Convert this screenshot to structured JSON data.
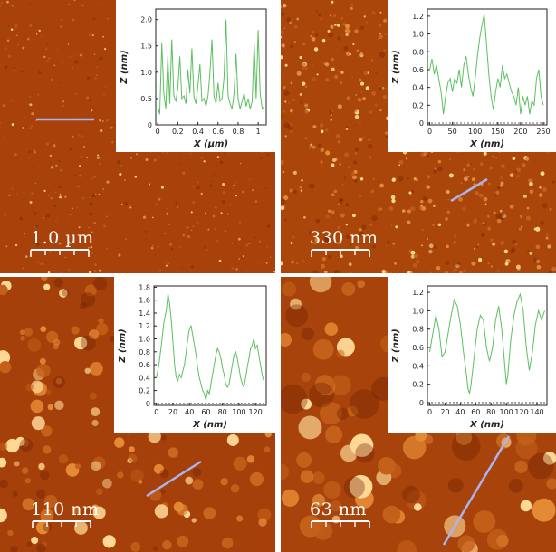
{
  "colors": {
    "afm_dark": "#7a2200",
    "afm_mid": "#b84a08",
    "afm_bright": "#ffd896",
    "profile_curve": "#5cc060",
    "profile_line_overlay": "#a9b4f0"
  },
  "panels": [
    {
      "id": "a",
      "scale_label": "1.0 µm",
      "inset": {
        "y_title": "Z (nm)",
        "x_title": "X (µm)",
        "y_ticks": [
          "0",
          "0.5",
          "1.0",
          "1.5",
          "2.0"
        ],
        "y_tick_values": [
          0,
          0.5,
          1.0,
          1.5,
          2.0
        ],
        "y_range": [
          0,
          2.2
        ],
        "x_ticks": [
          "0",
          "0.2",
          "0.4",
          "0.6",
          "0.8",
          "1"
        ],
        "x_tick_values": [
          0,
          0.2,
          0.4,
          0.6,
          0.8,
          1.0
        ],
        "x_range": [
          -0.02,
          1.08
        ],
        "profile": [
          [
            0,
            0.35
          ],
          [
            0.02,
            0.2
          ],
          [
            0.04,
            1.55
          ],
          [
            0.06,
            0.6
          ],
          [
            0.08,
            0.3
          ],
          [
            0.1,
            1.3
          ],
          [
            0.12,
            0.4
          ],
          [
            0.14,
            1.62
          ],
          [
            0.16,
            0.55
          ],
          [
            0.18,
            0.45
          ],
          [
            0.2,
            0.7
          ],
          [
            0.22,
            1.3
          ],
          [
            0.24,
            0.5
          ],
          [
            0.26,
            0.55
          ],
          [
            0.28,
            0.4
          ],
          [
            0.3,
            1.05
          ],
          [
            0.32,
            0.6
          ],
          [
            0.34,
            1.45
          ],
          [
            0.36,
            0.55
          ],
          [
            0.38,
            0.4
          ],
          [
            0.4,
            0.75
          ],
          [
            0.42,
            1.15
          ],
          [
            0.44,
            0.45
          ],
          [
            0.46,
            0.5
          ],
          [
            0.48,
            0.35
          ],
          [
            0.5,
            0.55
          ],
          [
            0.52,
            1.0
          ],
          [
            0.54,
            1.62
          ],
          [
            0.56,
            0.55
          ],
          [
            0.58,
            0.4
          ],
          [
            0.6,
            0.8
          ],
          [
            0.62,
            0.45
          ],
          [
            0.64,
            0.5
          ],
          [
            0.66,
            0.9
          ],
          [
            0.68,
            2.0
          ],
          [
            0.7,
            0.55
          ],
          [
            0.72,
            0.4
          ],
          [
            0.74,
            0.3
          ],
          [
            0.76,
            0.6
          ],
          [
            0.78,
            1.35
          ],
          [
            0.8,
            0.5
          ],
          [
            0.82,
            0.3
          ],
          [
            0.84,
            0.45
          ],
          [
            0.86,
            0.6
          ],
          [
            0.88,
            0.35
          ],
          [
            0.9,
            0.5
          ],
          [
            0.92,
            0.3
          ],
          [
            0.94,
            0.45
          ],
          [
            0.96,
            1.55
          ],
          [
            0.98,
            0.5
          ],
          [
            1.0,
            1.8
          ],
          [
            1.02,
            0.6
          ],
          [
            1.04,
            0.3
          ],
          [
            1.06,
            0.35
          ]
        ]
      }
    },
    {
      "id": "b",
      "scale_label": "330 nm",
      "inset": {
        "y_title": "Z (nm)",
        "x_title": "X (nm)",
        "y_ticks": [
          "0",
          "0.2",
          "0.4",
          "0.6",
          "0.8",
          "1.0",
          "1.2"
        ],
        "y_tick_values": [
          0,
          0.2,
          0.4,
          0.6,
          0.8,
          1.0,
          1.2
        ],
        "y_range": [
          -0.02,
          1.28
        ],
        "x_ticks": [
          "0",
          "50",
          "100",
          "150",
          "200",
          "250"
        ],
        "x_tick_values": [
          0,
          50,
          100,
          150,
          200,
          250
        ],
        "x_range": [
          -5,
          258
        ],
        "profile": [
          [
            0,
            0.6
          ],
          [
            5,
            0.72
          ],
          [
            10,
            0.55
          ],
          [
            15,
            0.65
          ],
          [
            20,
            0.5
          ],
          [
            25,
            0.35
          ],
          [
            30,
            0.1
          ],
          [
            35,
            0.3
          ],
          [
            40,
            0.45
          ],
          [
            45,
            0.5
          ],
          [
            50,
            0.35
          ],
          [
            55,
            0.5
          ],
          [
            60,
            0.45
          ],
          [
            65,
            0.6
          ],
          [
            70,
            0.4
          ],
          [
            75,
            0.65
          ],
          [
            80,
            0.75
          ],
          [
            85,
            0.55
          ],
          [
            90,
            0.4
          ],
          [
            95,
            0.3
          ],
          [
            100,
            0.5
          ],
          [
            105,
            0.75
          ],
          [
            110,
            0.95
          ],
          [
            115,
            1.1
          ],
          [
            120,
            1.22
          ],
          [
            125,
            0.9
          ],
          [
            130,
            0.55
          ],
          [
            135,
            0.3
          ],
          [
            140,
            0.15
          ],
          [
            145,
            0.35
          ],
          [
            150,
            0.5
          ],
          [
            155,
            0.4
          ],
          [
            160,
            0.65
          ],
          [
            165,
            0.5
          ],
          [
            170,
            0.55
          ],
          [
            175,
            0.45
          ],
          [
            180,
            0.35
          ],
          [
            185,
            0.3
          ],
          [
            190,
            0.2
          ],
          [
            195,
            0.4
          ],
          [
            200,
            0.1
          ],
          [
            205,
            0.3
          ],
          [
            210,
            0.2
          ],
          [
            215,
            0.3
          ],
          [
            220,
            0.1
          ],
          [
            225,
            0.25
          ],
          [
            230,
            0.2
          ],
          [
            235,
            0.5
          ],
          [
            240,
            0.6
          ],
          [
            245,
            0.3
          ],
          [
            250,
            0.2
          ]
        ]
      }
    },
    {
      "id": "c",
      "scale_label": "110 nm",
      "inset": {
        "y_title": "Z (nm)",
        "x_title": "X (nm)",
        "y_ticks": [
          "0",
          "0.2",
          "0.4",
          "0.6",
          "0.8",
          "1.0",
          "1.2",
          "1.4",
          "1.6",
          "1.8"
        ],
        "y_tick_values": [
          0,
          0.2,
          0.4,
          0.6,
          0.8,
          1.0,
          1.2,
          1.4,
          1.6,
          1.8
        ],
        "y_range": [
          -0.03,
          1.82
        ],
        "x_ticks": [
          "0",
          "20",
          "40",
          "60",
          "80",
          "100",
          "120"
        ],
        "x_tick_values": [
          0,
          20,
          40,
          60,
          80,
          100,
          120
        ],
        "x_range": [
          -3,
          133
        ],
        "profile": [
          [
            0,
            0.4
          ],
          [
            3,
            0.6
          ],
          [
            6,
            0.9
          ],
          [
            9,
            1.25
          ],
          [
            12,
            1.45
          ],
          [
            14,
            1.7
          ],
          [
            16,
            1.55
          ],
          [
            18,
            1.3
          ],
          [
            20,
            0.95
          ],
          [
            22,
            0.6
          ],
          [
            24,
            0.4
          ],
          [
            26,
            0.35
          ],
          [
            28,
            0.45
          ],
          [
            30,
            0.4
          ],
          [
            32,
            0.5
          ],
          [
            34,
            0.6
          ],
          [
            36,
            0.8
          ],
          [
            38,
            1.0
          ],
          [
            40,
            1.15
          ],
          [
            42,
            1.2
          ],
          [
            44,
            1.05
          ],
          [
            46,
            0.9
          ],
          [
            48,
            0.75
          ],
          [
            50,
            0.55
          ],
          [
            52,
            0.4
          ],
          [
            54,
            0.3
          ],
          [
            56,
            0.2
          ],
          [
            58,
            0.15
          ],
          [
            60,
            0.05
          ],
          [
            62,
            0.2
          ],
          [
            64,
            0.15
          ],
          [
            66,
            0.3
          ],
          [
            68,
            0.45
          ],
          [
            70,
            0.6
          ],
          [
            72,
            0.75
          ],
          [
            74,
            0.85
          ],
          [
            76,
            0.8
          ],
          [
            78,
            0.7
          ],
          [
            80,
            0.55
          ],
          [
            82,
            0.45
          ],
          [
            84,
            0.3
          ],
          [
            86,
            0.25
          ],
          [
            88,
            0.3
          ],
          [
            90,
            0.45
          ],
          [
            92,
            0.6
          ],
          [
            94,
            0.75
          ],
          [
            96,
            0.8
          ],
          [
            98,
            0.7
          ],
          [
            100,
            0.55
          ],
          [
            102,
            0.4
          ],
          [
            104,
            0.3
          ],
          [
            106,
            0.25
          ],
          [
            108,
            0.4
          ],
          [
            110,
            0.55
          ],
          [
            112,
            0.7
          ],
          [
            114,
            0.85
          ],
          [
            116,
            0.9
          ],
          [
            118,
            1.0
          ],
          [
            120,
            0.85
          ],
          [
            122,
            0.9
          ],
          [
            124,
            0.75
          ],
          [
            126,
            0.6
          ],
          [
            128,
            0.45
          ],
          [
            130,
            0.35
          ]
        ]
      }
    },
    {
      "id": "d",
      "scale_label": "63 nm",
      "inset": {
        "y_title": "Z (nm)",
        "x_title": "X (nm)",
        "y_ticks": [
          "0",
          "0.2",
          "0.4",
          "0.6",
          "0.8",
          "1.0",
          "1.2"
        ],
        "y_tick_values": [
          0,
          0.2,
          0.4,
          0.6,
          0.8,
          1.0,
          1.2
        ],
        "y_range": [
          -0.03,
          1.27
        ],
        "x_ticks": [
          "0",
          "20",
          "40",
          "60",
          "80",
          "100",
          "120",
          "140"
        ],
        "x_tick_values": [
          0,
          20,
          40,
          60,
          80,
          100,
          120,
          140
        ],
        "x_range": [
          -3,
          153
        ],
        "profile": [
          [
            0,
            0.55
          ],
          [
            4,
            0.75
          ],
          [
            8,
            0.95
          ],
          [
            12,
            0.8
          ],
          [
            16,
            0.5
          ],
          [
            20,
            0.55
          ],
          [
            24,
            0.75
          ],
          [
            28,
            0.95
          ],
          [
            32,
            1.12
          ],
          [
            36,
            1.05
          ],
          [
            40,
            0.85
          ],
          [
            44,
            0.55
          ],
          [
            48,
            0.3
          ],
          [
            50,
            0.15
          ],
          [
            52,
            0.1
          ],
          [
            54,
            0.2
          ],
          [
            58,
            0.5
          ],
          [
            62,
            0.8
          ],
          [
            66,
            0.95
          ],
          [
            70,
            0.9
          ],
          [
            74,
            0.6
          ],
          [
            78,
            0.45
          ],
          [
            82,
            0.6
          ],
          [
            86,
            0.9
          ],
          [
            90,
            1.05
          ],
          [
            94,
            0.8
          ],
          [
            98,
            0.4
          ],
          [
            100,
            0.2
          ],
          [
            102,
            0.3
          ],
          [
            106,
            0.7
          ],
          [
            110,
            0.95
          ],
          [
            114,
            1.1
          ],
          [
            118,
            1.18
          ],
          [
            122,
            1.0
          ],
          [
            126,
            0.6
          ],
          [
            130,
            0.35
          ],
          [
            134,
            0.55
          ],
          [
            138,
            0.85
          ],
          [
            142,
            1.0
          ],
          [
            146,
            0.9
          ],
          [
            150,
            1.0
          ]
        ]
      }
    }
  ]
}
